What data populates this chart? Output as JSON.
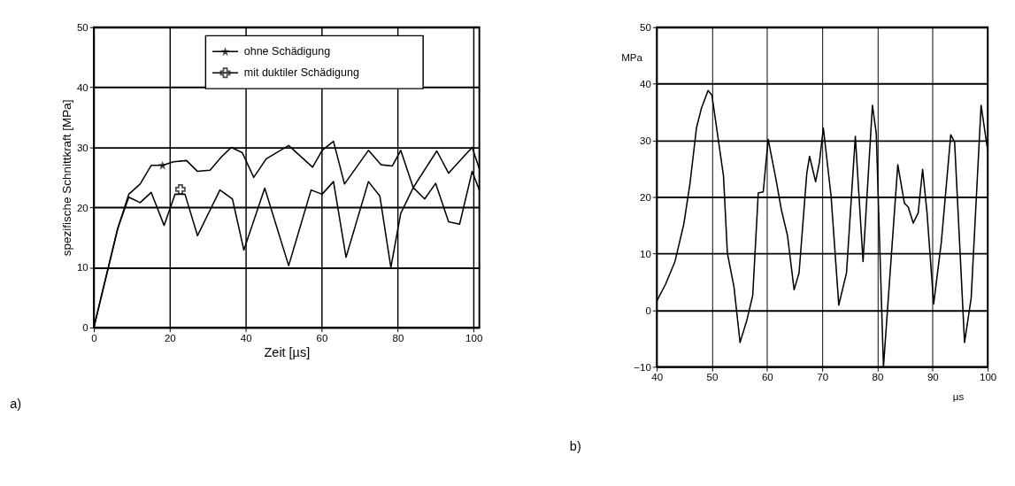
{
  "chart_data": [
    {
      "type": "line",
      "xlabel": "Zeit [µs]",
      "ylabel": "spezifische Schnittkraft [MPa]",
      "xlim": [
        0,
        101.5
      ],
      "ylim": [
        0,
        50
      ],
      "xticks": [
        0,
        20,
        40,
        60,
        80,
        100
      ],
      "yticks": [
        0,
        10,
        20,
        30,
        40,
        50
      ],
      "grid": true,
      "legend": "top right",
      "line_style": "solid",
      "annotations": [
        "a)"
      ],
      "series": [
        {
          "name": "ohne Schädigung",
          "color": "#000000",
          "x": [
            0,
            6.3,
            9.2,
            12.2,
            15.1,
            18.1,
            21,
            24.4,
            27.3,
            30.6,
            33.6,
            36.2,
            39.1,
            42.1,
            45.4,
            51.3,
            57.6,
            60.1,
            63.1,
            66,
            72.3,
            75.6,
            78.6,
            80.8,
            84.1,
            90.3,
            93.4,
            99.6,
            101.5
          ],
          "values": [
            0,
            16.5,
            22.2,
            23.9,
            27,
            27,
            27.6,
            27.8,
            26,
            26.2,
            28.4,
            30,
            29.1,
            25,
            28.1,
            30.3,
            26.7,
            29.5,
            31,
            23.9,
            29.5,
            27.1,
            26.9,
            29.5,
            23.3,
            29.4,
            25.7,
            30,
            26.4
          ]
        },
        {
          "name": "mit duktiler Schädigung",
          "color": "#000000",
          "x": [
            0,
            6.3,
            9.2,
            12.2,
            15.1,
            18.5,
            21.4,
            24,
            27.3,
            33.2,
            36.5,
            39.5,
            45,
            51.3,
            57.2,
            60.1,
            63.1,
            66.4,
            72.3,
            75.3,
            78.2,
            80.8,
            84.1,
            87.1,
            90,
            93.4,
            96.3,
            99.6,
            101.5
          ],
          "values": [
            0,
            16.5,
            21.7,
            20.8,
            22.5,
            17,
            22.2,
            22.2,
            15.3,
            22.9,
            21.4,
            12.9,
            23.2,
            10.3,
            22.9,
            22.2,
            24.3,
            11.7,
            24.3,
            21.9,
            10,
            19,
            23.3,
            21.4,
            24,
            17.6,
            17.2,
            26,
            22.9
          ]
        },
        {
          "type": "scatter",
          "color": "#000000",
          "marker": "star",
          "x": [
            18.1
          ],
          "values": [
            27
          ]
        },
        {
          "type": "scatter",
          "color": "#000000",
          "marker": "cross",
          "x": [
            22.8
          ],
          "values": [
            23
          ]
        }
      ]
    },
    {
      "type": "line",
      "xlabel": "µs",
      "ylabel": "MPa",
      "xlim": [
        40,
        100
      ],
      "ylim": [
        -10,
        50
      ],
      "xticks": [
        40,
        50,
        60,
        70,
        80,
        90,
        100
      ],
      "yticks": [
        -10,
        0,
        10,
        20,
        30,
        40,
        50
      ],
      "grid": true,
      "line_style": "solid",
      "annotations": [
        "b)"
      ],
      "series": [
        {
          "color": "#000000",
          "x": [
            40,
            41.6,
            43.3,
            44.9,
            46,
            47.2,
            48.1,
            49.3,
            50,
            51,
            52.1,
            52.8,
            54,
            55.1,
            56.3,
            57.4,
            58.4,
            59.3,
            60.2,
            61.6,
            62.6,
            63.7,
            64.9,
            65.8,
            67.2,
            67.7,
            68.8,
            69.5,
            70.2,
            71.6,
            73,
            74.4,
            76,
            77.4,
            79.1,
            79.8,
            81.1,
            82.6,
            83.7,
            84.9,
            85.6,
            86.5,
            87.4,
            88.2,
            89,
            90.2,
            91.6,
            93.3,
            94,
            95.8,
            97,
            98.8,
            100
          ],
          "values": [
            1.6,
            4.6,
            8.6,
            15.2,
            22.2,
            32.2,
            35.7,
            38.8,
            38,
            31.2,
            23.7,
            10.1,
            4.1,
            -5.7,
            -1.9,
            2.6,
            20.7,
            20.9,
            30.2,
            23.2,
            17.7,
            13.2,
            3.6,
            6.6,
            24.2,
            27.2,
            22.7,
            26.2,
            32.2,
            20.2,
            0.9,
            6.6,
            30.7,
            8.6,
            36.2,
            31.2,
            -10,
            10.6,
            25.7,
            18.9,
            18.2,
            15.4,
            17.2,
            24.9,
            17.2,
            1.1,
            12.1,
            31,
            29.7,
            -5.7,
            2.1,
            36.2,
            28.2
          ]
        }
      ]
    }
  ]
}
